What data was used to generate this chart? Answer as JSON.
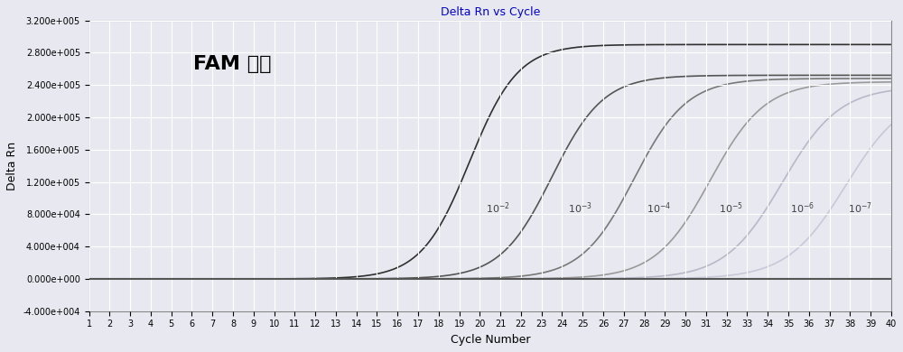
{
  "title": "Delta Rn vs Cycle",
  "xlabel": "Cycle Number",
  "ylabel": "Delta Rn",
  "annotation": "FAM 通道",
  "xlim": [
    1,
    40
  ],
  "ylim": [
    -40000,
    320000
  ],
  "yticks": [
    -40000,
    0,
    40000,
    80000,
    120000,
    160000,
    200000,
    240000,
    280000,
    320000
  ],
  "ytick_labels": [
    "-4.000e+004",
    "0.000e+000",
    "4.000e+004",
    "8.000e+004",
    "1.200e+005",
    "1.600e+005",
    "2.000e+005",
    "2.400e+005",
    "2.800e+005",
    "3.200e+005"
  ],
  "xticks": [
    1,
    2,
    3,
    4,
    5,
    6,
    7,
    8,
    9,
    10,
    11,
    12,
    13,
    14,
    15,
    16,
    17,
    18,
    19,
    20,
    21,
    22,
    23,
    24,
    25,
    26,
    27,
    28,
    29,
    30,
    31,
    32,
    33,
    34,
    35,
    36,
    37,
    38,
    39,
    40
  ],
  "background_color": "#e8e8f0",
  "plot_bg_color": "#e8e8f0",
  "grid_color": "#ffffff",
  "curve_colors": [
    "#303030",
    "#555555",
    "#787878",
    "#9a9a9a",
    "#b8b8c8",
    "#c8c8d8"
  ],
  "curve_mids": [
    19.5,
    23.5,
    27.5,
    31.2,
    34.7,
    37.8
  ],
  "curve_L": [
    290000,
    252000,
    248000,
    244000,
    238000,
    232000
  ],
  "curve_k": [
    0.85,
    0.8,
    0.78,
    0.75,
    0.72,
    0.7
  ],
  "label_configs": [
    [
      20.3,
      78000,
      "-2"
    ],
    [
      24.3,
      78000,
      "-3"
    ],
    [
      28.1,
      78000,
      "-4"
    ],
    [
      31.6,
      78000,
      "-5"
    ],
    [
      35.1,
      78000,
      "-6"
    ],
    [
      37.9,
      78000,
      "-7"
    ]
  ]
}
